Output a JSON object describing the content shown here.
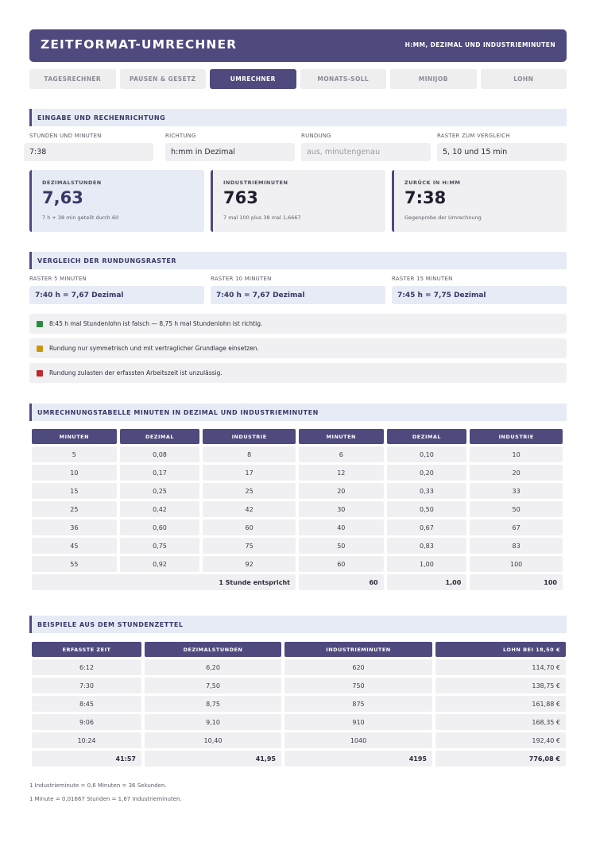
{
  "header": {
    "title": "ZEITFORMAT-UMRECHNER",
    "subtitle": "H:MM, DEZIMAL UND INDUSTRIEMINUTEN"
  },
  "tabs": [
    {
      "label": "TAGESRECHNER",
      "active": false
    },
    {
      "label": "PAUSEN & GESETZ",
      "active": false
    },
    {
      "label": "UMRECHNER",
      "active": true
    },
    {
      "label": "MONATS-SOLL",
      "active": false
    },
    {
      "label": "MINIJOB",
      "active": false
    },
    {
      "label": "LOHN",
      "active": false
    }
  ],
  "input": {
    "heading": "EINGABE UND RECHENRICHTUNG",
    "hours": {
      "label": "STUNDEN UND MINUTEN",
      "value": "7:38"
    },
    "direction": {
      "label": "RICHTUNG",
      "value": "h:mm in Dezimal"
    },
    "rounding": {
      "label": "RUNDUNG",
      "placeholder": "aus, minutengenau"
    },
    "raster": {
      "label": "RASTER ZUM VERGLEICH",
      "value": "5, 10 und 15 min"
    }
  },
  "results": [
    {
      "label": "DEZIMALSTUNDEN",
      "value": "7,63",
      "note": "7 h + 38 min geteilt durch 60"
    },
    {
      "label": "INDUSTRIEMINUTEN",
      "value": "763",
      "note": "7 mal 100 plus 38 mal 1,6667"
    },
    {
      "label": "ZURÜCK IN H:MM",
      "value": "7:38",
      "note": "Gegenprobe der Umrechnung"
    }
  ],
  "comparison": {
    "heading": "VERGLEICH DER RUNDUNGSRASTER",
    "rasters": [
      {
        "label": "RASTER 5 MINUTEN",
        "value": "7:40 h = 7,67 Dezimal"
      },
      {
        "label": "RASTER 10 MINUTEN",
        "value": "7:40 h = 7,67 Dezimal"
      },
      {
        "label": "RASTER 15 MINUTEN",
        "value": "7:45 h = 7,75 Dezimal"
      }
    ],
    "notes": [
      {
        "text": "8:45 h mal Stundenlohn ist falsch — 8,75 h mal Stundenlohn ist richtig.",
        "color": "#2e8b3e"
      },
      {
        "text": "Rundung nur symmetrisch und mit vertraglicher Grundlage einsetzen.",
        "color": "#c8960c"
      },
      {
        "text": "Rundung zulasten der erfassten Arbeitszeit ist unzulässig.",
        "color": "#c0282d"
      }
    ]
  },
  "conversion": {
    "heading": "UMRECHNUNGSTABELLE MINUTEN IN DEZIMAL UND INDUSTRIEMINUTEN",
    "columns": [
      "MINUTEN",
      "DEZIMAL",
      "INDUSTRIE",
      "MINUTEN",
      "DEZIMAL",
      "INDUSTRIE"
    ],
    "rows": [
      [
        "5",
        "0,08",
        "8",
        "6",
        "0,10",
        "10"
      ],
      [
        "10",
        "0,17",
        "17",
        "12",
        "0,20",
        "20"
      ],
      [
        "15",
        "0,25",
        "25",
        "20",
        "0,33",
        "33"
      ],
      [
        "25",
        "0,42",
        "42",
        "30",
        "0,50",
        "50"
      ],
      [
        "36",
        "0,60",
        "60",
        "40",
        "0,67",
        "67"
      ],
      [
        "45",
        "0,75",
        "75",
        "50",
        "0,83",
        "83"
      ],
      [
        "55",
        "0,92",
        "92",
        "60",
        "1,00",
        "100"
      ]
    ],
    "footer": {
      "label": "1 Stunde entspricht",
      "minutes": "60",
      "decimal": "1,00",
      "industry": "100"
    }
  },
  "examples": {
    "heading": "BEISPIELE AUS DEM STUNDENZETTEL",
    "columns": [
      "ERFASSTE ZEIT",
      "DEZIMALSTUNDEN",
      "INDUSTRIEMINUTEN",
      "LOHN BEI 18,50 €"
    ],
    "rows": [
      [
        "6:12",
        "6,20",
        "620",
        "114,70 €"
      ],
      [
        "7:30",
        "7,50",
        "750",
        "138,75 €"
      ],
      [
        "8:45",
        "8,75",
        "875",
        "161,88 €"
      ],
      [
        "9:06",
        "9,10",
        "910",
        "168,35 €"
      ],
      [
        "10:24",
        "10,40",
        "1040",
        "192,40 €"
      ]
    ],
    "totals": [
      "41:57",
      "41,95",
      "4195",
      "776,08 €"
    ]
  },
  "footnotes": [
    "1 Industrieminute = 0,6 Minuten = 36 Sekunden.",
    "1 Minute = 0,01667 Stunden = 1,67 Industrieminuten."
  ],
  "colors": {
    "accent": "#4e4a7e",
    "section_bg": "#e6ebf5",
    "cell_bg": "#f0f0f2"
  }
}
